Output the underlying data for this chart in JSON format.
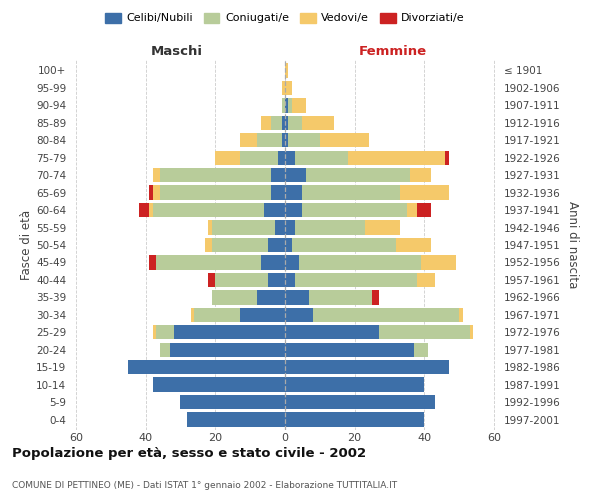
{
  "age_groups": [
    "0-4",
    "5-9",
    "10-14",
    "15-19",
    "20-24",
    "25-29",
    "30-34",
    "35-39",
    "40-44",
    "45-49",
    "50-54",
    "55-59",
    "60-64",
    "65-69",
    "70-74",
    "75-79",
    "80-84",
    "85-89",
    "90-94",
    "95-99",
    "100+"
  ],
  "birth_years": [
    "1997-2001",
    "1992-1996",
    "1987-1991",
    "1982-1986",
    "1977-1981",
    "1972-1976",
    "1967-1971",
    "1962-1966",
    "1957-1961",
    "1952-1956",
    "1947-1951",
    "1942-1946",
    "1937-1941",
    "1932-1936",
    "1927-1931",
    "1922-1926",
    "1917-1921",
    "1912-1916",
    "1907-1911",
    "1902-1906",
    "≤ 1901"
  ],
  "male_celibi": [
    28,
    30,
    38,
    45,
    33,
    32,
    13,
    8,
    5,
    7,
    5,
    3,
    6,
    4,
    4,
    2,
    1,
    1,
    0,
    0,
    0
  ],
  "male_coniugati": [
    0,
    0,
    0,
    0,
    3,
    5,
    13,
    13,
    15,
    30,
    16,
    18,
    32,
    32,
    32,
    11,
    7,
    3,
    1,
    0,
    0
  ],
  "male_vedovi": [
    0,
    0,
    0,
    0,
    0,
    1,
    1,
    0,
    0,
    0,
    2,
    1,
    1,
    2,
    2,
    7,
    5,
    3,
    0,
    1,
    0
  ],
  "male_divorziati": [
    0,
    0,
    0,
    0,
    0,
    0,
    0,
    0,
    2,
    2,
    0,
    0,
    3,
    1,
    0,
    0,
    0,
    0,
    0,
    0,
    0
  ],
  "female_nubili": [
    40,
    43,
    40,
    47,
    37,
    27,
    8,
    7,
    3,
    4,
    2,
    3,
    5,
    5,
    6,
    3,
    1,
    1,
    1,
    0,
    0
  ],
  "female_coniugate": [
    0,
    0,
    0,
    0,
    4,
    26,
    42,
    18,
    35,
    35,
    30,
    20,
    30,
    28,
    30,
    15,
    9,
    4,
    1,
    0,
    0
  ],
  "female_vedove": [
    0,
    0,
    0,
    0,
    0,
    1,
    1,
    0,
    5,
    10,
    10,
    10,
    3,
    14,
    6,
    28,
    14,
    9,
    4,
    2,
    1
  ],
  "female_divorziate": [
    0,
    0,
    0,
    0,
    0,
    0,
    0,
    2,
    0,
    0,
    0,
    0,
    4,
    0,
    0,
    1,
    0,
    0,
    0,
    0,
    0
  ],
  "color_celibi": "#3d6fa8",
  "color_coniugati": "#b8cc9a",
  "color_vedovi": "#f5c96a",
  "color_divorziati": "#cc2222",
  "title": "Popolazione per età, sesso e stato civile - 2002",
  "subtitle": "COMUNE DI PETTINEO (ME) - Dati ISTAT 1° gennaio 2002 - Elaborazione TUTTITALIA.IT",
  "label_maschi": "Maschi",
  "label_femmine": "Femmine",
  "ylabel_left": "Fasce di età",
  "ylabel_right": "Anni di nascita",
  "legend_labels": [
    "Celibi/Nubili",
    "Coniugati/e",
    "Vedovi/e",
    "Divorziati/e"
  ],
  "xlim": 62,
  "bg_color": "#ffffff",
  "grid_color": "#cccccc"
}
